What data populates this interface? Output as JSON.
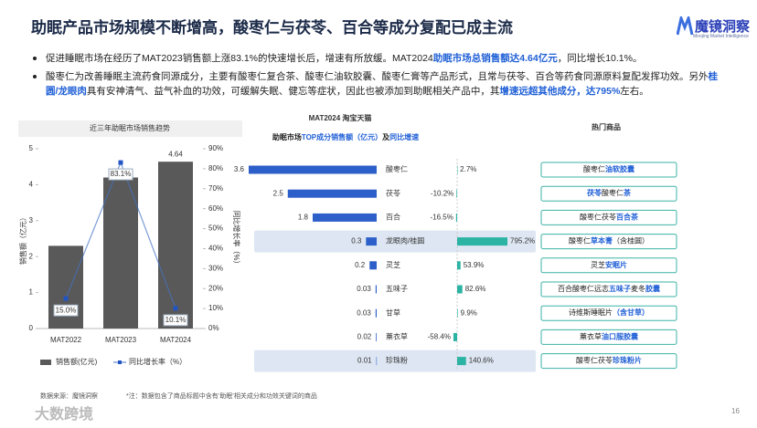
{
  "header": {
    "title": "助眠产品市场规模不断增高，酸枣仁与茯苓、百合等成分复配已成主流",
    "logo": "魔镜洞察",
    "logo_sub": "Moojing Market Intelligence"
  },
  "bullets": [
    {
      "segments": [
        {
          "text": "促进睡眠市场在经历了MAT2023销售额上涨83.1%的快速增长后，增速有所放缓。MAT2024",
          "highlight": false
        },
        {
          "text": "助眠市场总销售额达4.64亿元",
          "highlight": true
        },
        {
          "text": "，同比增长10.1%。",
          "highlight": false
        }
      ]
    },
    {
      "segments": [
        {
          "text": "酸枣仁为改善睡眠主流药食同源成分，主要有酸枣仁复合茶、酸枣仁油软胶囊、酸枣仁膏等产品形式，且常与茯苓、百合等药食同源原料复配发挥功效。另外",
          "highlight": false
        },
        {
          "text": "桂圆/龙眼肉",
          "highlight": true
        },
        {
          "text": "具有安神清气、益气补血的功效，可缓解失眠、健忘等症状，因此也被添加到助眠相关产品中，其",
          "highlight": false
        },
        {
          "text": "增速远超其他成分，达795%",
          "highlight": true
        },
        {
          "text": "左右。",
          "highlight": false
        }
      ]
    }
  ],
  "chart_data": [
    {
      "type": "bar",
      "title": "近三年助眠市场销售趋势",
      "ylabel": "销售额（亿元）",
      "y2label": "同比增长率（%）",
      "categories": [
        "MAT2022",
        "MAT2023",
        "MAT2024"
      ],
      "series": [
        {
          "name": "销售额(亿元)",
          "type": "bar",
          "color": "#595959",
          "values": [
            2.3,
            4.2,
            4.64
          ],
          "value_labels": [
            null,
            null,
            "4.64"
          ]
        },
        {
          "name": "同比增长率（%）",
          "type": "line",
          "axis": "y2",
          "color": "#4472c4",
          "values": [
            15.0,
            83.1,
            10.1
          ],
          "value_labels": [
            "15.0%",
            "83.1%",
            "10.1%"
          ]
        }
      ],
      "ylim": [
        0,
        5
      ],
      "yticks": [
        0,
        1,
        2,
        3,
        4,
        5
      ],
      "y2lim": [
        0,
        90
      ],
      "y2ticks": [
        {
          "value": 0,
          "label": "0%"
        },
        {
          "value": 10,
          "label": "10%"
        },
        {
          "value": 20,
          "label": "20%"
        },
        {
          "value": 30,
          "label": "30%"
        },
        {
          "value": 40,
          "label": "40%"
        },
        {
          "value": 50,
          "label": "50%"
        },
        {
          "value": 60,
          "label": "60%"
        },
        {
          "value": 70,
          "label": "70%"
        },
        {
          "value": 80,
          "label": "80%"
        },
        {
          "value": 90,
          "label": "90%"
        }
      ],
      "legend": "bottom"
    },
    {
      "type": "diverging_bar",
      "title": "MAT2024 淘宝天猫",
      "subtitle": [
        {
          "text": "助眠市场",
          "highlight": false
        },
        {
          "text": "TOP成分销售额（亿元）",
          "highlight": true
        },
        {
          "text": "及",
          "highlight": false
        },
        {
          "text": "同比增速",
          "highlight": true
        }
      ],
      "categories": [
        "酸枣仁",
        "茯苓",
        "百合",
        "龙眼肉/桂圆",
        "灵芝",
        "五味子",
        "甘草",
        "薰衣草",
        "珍珠粉"
      ],
      "highlight": [
        false,
        false,
        false,
        true,
        false,
        false,
        false,
        false,
        true
      ],
      "series": [
        {
          "color": "#2c5fc9",
          "values": [
            3.6,
            2.5,
            1.8,
            0.3,
            0.2,
            0.03,
            0.03,
            0.02,
            0.01
          ]
        },
        {
          "color": "#2bb3a3",
          "values": [
            2.7,
            -10.2,
            -16.5,
            795.2,
            53.9,
            82.6,
            9.9,
            -58.4,
            140.6
          ],
          "value_labels": [
            "2.7%",
            "-10.2%",
            "-16.5%",
            "795.2%",
            "53.9%",
            "82.6%",
            "9.9%",
            "-58.4%",
            "140.6%"
          ]
        }
      ]
    }
  ],
  "hot_products": {
    "title": "热门商品",
    "items": [
      {
        "segments": [
          {
            "text": "酸枣仁",
            "highlight": false
          },
          {
            "text": "油软胶囊",
            "highlight": true
          }
        ]
      },
      {
        "segments": [
          {
            "text": "茯苓",
            "highlight": true
          },
          {
            "text": "酸枣仁",
            "highlight": false
          },
          {
            "text": "茶",
            "highlight": true
          }
        ]
      },
      {
        "segments": [
          {
            "text": "酸枣仁茯苓",
            "highlight": false
          },
          {
            "text": "百合茶",
            "highlight": true
          }
        ]
      },
      {
        "segments": [
          {
            "text": "酸枣仁",
            "highlight": false
          },
          {
            "text": "草本膏",
            "highlight": true
          },
          {
            "text": "（含桂圆）",
            "highlight": false
          }
        ]
      },
      {
        "segments": [
          {
            "text": "灵芝",
            "highlight": false
          },
          {
            "text": "安眠片",
            "highlight": true
          }
        ]
      },
      {
        "segments": [
          {
            "text": "百合酸枣仁远志",
            "highlight": false
          },
          {
            "text": "五味子",
            "highlight": true
          },
          {
            "text": "麦冬",
            "highlight": false
          },
          {
            "text": "胶囊",
            "highlight": true
          }
        ]
      },
      {
        "segments": [
          {
            "text": "诗维斯睡眠片",
            "highlight": false
          },
          {
            "text": "（含甘草）",
            "highlight": true
          }
        ]
      },
      {
        "segments": [
          {
            "text": "薰衣草",
            "highlight": false
          },
          {
            "text": "油口服胶囊",
            "highlight": true
          }
        ]
      },
      {
        "segments": [
          {
            "text": "酸枣仁茯苓",
            "highlight": false
          },
          {
            "text": "珍珠粉片",
            "highlight": true
          }
        ]
      }
    ]
  },
  "footer": {
    "source": "数据来源：魔镜洞察",
    "note": "*注：数据包含了商品标题中含有‘助眠’相关成分和功效关键词的商品",
    "page": "16",
    "watermark": "大数跨境"
  }
}
